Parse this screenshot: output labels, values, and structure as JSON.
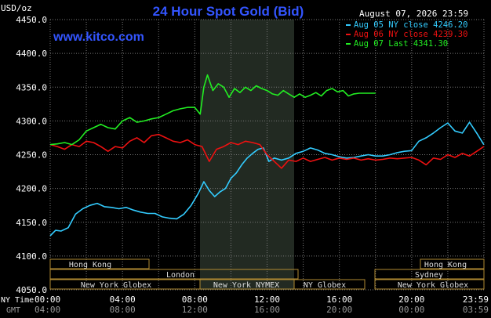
{
  "header": {
    "units": "USD/oz",
    "title": "24 Hour Spot Gold (Bid)",
    "date": "August 07, 2026 23:59",
    "site": "www.kitco.com"
  },
  "colors": {
    "background": "#000000",
    "grid": "#777777",
    "axis_text": "#ffffff",
    "title": "#3355ff",
    "shade": "#222a22",
    "session_box": "#b08a32",
    "session_text": "#dddddd",
    "series_blue": "#33ccff",
    "series_red": "#ee1111",
    "series_green": "#22ee22"
  },
  "axis_labels": {
    "ny_time": "NY Time",
    "gmt": "GMT"
  },
  "sessions": [
    {
      "label": "Hong Kong",
      "row": 0
    },
    {
      "label": "London",
      "row": 1
    },
    {
      "label": "New York Globex",
      "row": 2
    },
    {
      "label": "New York NYMEX",
      "row": 2
    },
    {
      "label": "NY Globex",
      "row": 2
    },
    {
      "label": "Hong Kong",
      "row": 0
    },
    {
      "label": "Sydney",
      "row": 1
    },
    {
      "label": "New York Globex",
      "row": 2
    }
  ],
  "chart_data": {
    "type": "line",
    "title": "24 Hour Spot Gold (Bid)",
    "ylabel": "USD/oz",
    "ylim": [
      4050,
      4450
    ],
    "yticks": [
      4050,
      4100,
      4150,
      4200,
      4250,
      4300,
      4350,
      4400,
      4450
    ],
    "ytick_labels": [
      "4050.0",
      "4100.0",
      "4150.0",
      "4200.0",
      "4250.0",
      "4300.0",
      "4350.0",
      "4400.0",
      "4450.0"
    ],
    "xlim": [
      0,
      24
    ],
    "xticks": [
      0,
      4,
      8,
      12,
      16,
      20,
      24
    ],
    "xtick_labels_ny": [
      "00:00",
      "04:00",
      "08:00",
      "12:00",
      "16:00",
      "20:00",
      "23:59"
    ],
    "xtick_labels_gmt": [
      "04:00",
      "08:00",
      "12:00",
      "16:00",
      "20:00",
      "00:00",
      "03:59"
    ],
    "grid": true,
    "legend_position": "top-right",
    "series": [
      {
        "name": "Aug 05 NY close 4246.20",
        "x": [
          0,
          0.3,
          0.6,
          1.0,
          1.4,
          1.8,
          2.2,
          2.6,
          3.0,
          3.4,
          3.8,
          4.2,
          4.6,
          5.0,
          5.4,
          5.8,
          6.2,
          6.6,
          7.0,
          7.4,
          7.8,
          8.2,
          8.5,
          8.8,
          9.1,
          9.4,
          9.7,
          10.0,
          10.3,
          10.6,
          10.9,
          11.2,
          11.5,
          11.8,
          12.1,
          12.4,
          12.8,
          13.2,
          13.6,
          14.0,
          14.4,
          14.8,
          15.2,
          15.6,
          16.0,
          16.4,
          16.8,
          17.2,
          17.6,
          18.0,
          18.4,
          18.8,
          19.2,
          19.6,
          20.0,
          20.4,
          20.8,
          21.2,
          21.6,
          22.0,
          22.4,
          22.8,
          23.2,
          23.6,
          23.99
        ],
        "y": [
          4130,
          4138,
          4137,
          4142,
          4162,
          4170,
          4175,
          4178,
          4173,
          4172,
          4170,
          4172,
          4168,
          4165,
          4163,
          4163,
          4158,
          4156,
          4155,
          4162,
          4175,
          4193,
          4210,
          4197,
          4188,
          4195,
          4200,
          4215,
          4223,
          4235,
          4245,
          4252,
          4258,
          4260,
          4240,
          4245,
          4242,
          4245,
          4252,
          4255,
          4260,
          4257,
          4252,
          4250,
          4247,
          4245,
          4246,
          4248,
          4250,
          4248,
          4248,
          4250,
          4253,
          4255,
          4256,
          4270,
          4275,
          4282,
          4290,
          4297,
          4285,
          4282,
          4298,
          4282,
          4265
        ]
      },
      {
        "name": "Aug 06 NY close 4239.30",
        "x": [
          0,
          0.4,
          0.8,
          1.2,
          1.6,
          2.0,
          2.4,
          2.8,
          3.2,
          3.6,
          4.0,
          4.4,
          4.8,
          5.2,
          5.6,
          6.0,
          6.4,
          6.8,
          7.2,
          7.6,
          8.0,
          8.4,
          8.8,
          9.2,
          9.6,
          10.0,
          10.4,
          10.8,
          11.2,
          11.6,
          12.0,
          12.4,
          12.8,
          13.2,
          13.6,
          14.0,
          14.4,
          14.8,
          15.2,
          15.6,
          16.0,
          16.4,
          16.8,
          17.2,
          17.6,
          18.0,
          18.4,
          18.8,
          19.2,
          19.6,
          20.0,
          20.4,
          20.8,
          21.2,
          21.6,
          22.0,
          22.4,
          22.8,
          23.2,
          23.6,
          23.99
        ],
        "y": [
          4265,
          4262,
          4258,
          4265,
          4262,
          4270,
          4268,
          4262,
          4255,
          4262,
          4260,
          4270,
          4275,
          4268,
          4278,
          4280,
          4275,
          4270,
          4268,
          4272,
          4265,
          4262,
          4240,
          4258,
          4262,
          4268,
          4265,
          4270,
          4268,
          4265,
          4250,
          4240,
          4230,
          4242,
          4240,
          4245,
          4240,
          4243,
          4246,
          4242,
          4245,
          4243,
          4245,
          4242,
          4244,
          4242,
          4243,
          4245,
          4244,
          4245,
          4246,
          4242,
          4235,
          4245,
          4243,
          4250,
          4246,
          4252,
          4248,
          4255,
          4262
        ]
      },
      {
        "name": "Aug 07 Last 4341.30",
        "x": [
          0,
          0.4,
          0.8,
          1.2,
          1.6,
          2.0,
          2.4,
          2.8,
          3.2,
          3.6,
          4.0,
          4.4,
          4.8,
          5.2,
          5.6,
          6.0,
          6.4,
          6.8,
          7.2,
          7.6,
          8.0,
          8.3,
          8.5,
          8.7,
          9.0,
          9.3,
          9.6,
          9.9,
          10.2,
          10.5,
          10.8,
          11.1,
          11.4,
          11.7,
          12.0,
          12.3,
          12.6,
          12.9,
          13.2,
          13.5,
          13.8,
          14.1,
          14.4,
          14.7,
          15.0,
          15.3,
          15.6,
          15.9,
          16.2,
          16.5,
          16.8,
          17.1,
          17.4,
          17.7,
          18.0
        ],
        "y": [
          4265,
          4266,
          4268,
          4265,
          4272,
          4285,
          4290,
          4295,
          4290,
          4288,
          4300,
          4305,
          4298,
          4300,
          4303,
          4305,
          4310,
          4315,
          4318,
          4320,
          4320,
          4310,
          4350,
          4368,
          4345,
          4355,
          4350,
          4335,
          4348,
          4342,
          4350,
          4345,
          4352,
          4348,
          4345,
          4340,
          4338,
          4345,
          4340,
          4335,
          4340,
          4335,
          4338,
          4342,
          4337,
          4345,
          4348,
          4343,
          4345,
          4337,
          4340,
          4341,
          4341,
          4341,
          4341
        ]
      }
    ]
  }
}
